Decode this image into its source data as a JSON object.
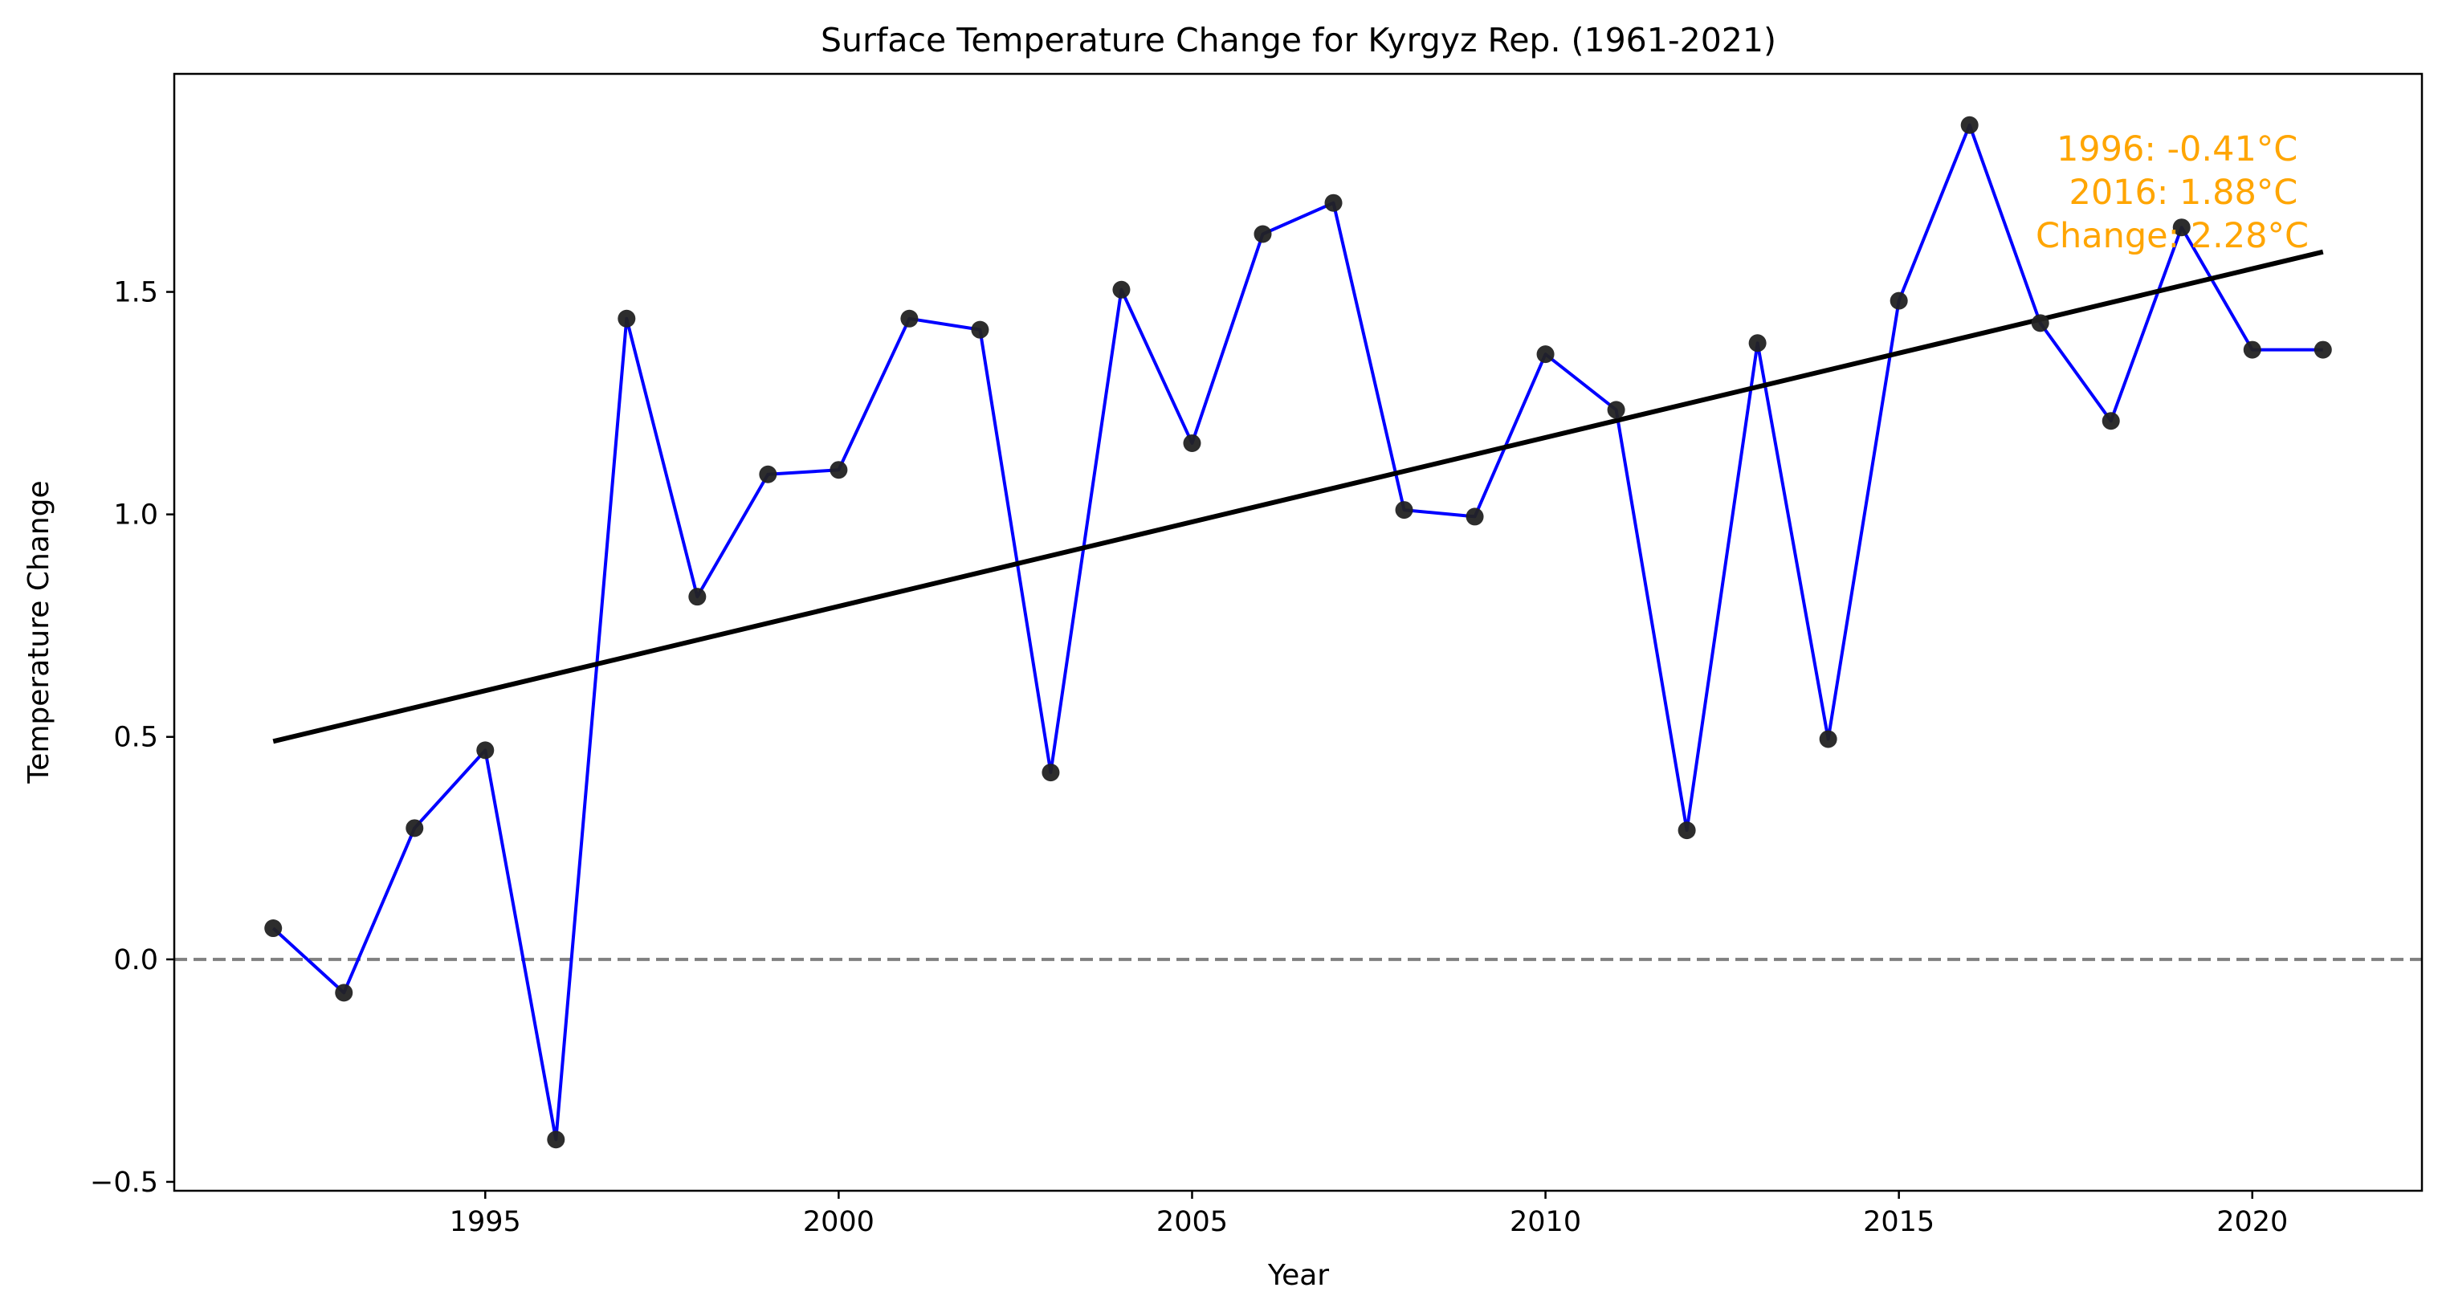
{
  "colors": {
    "series_line": "#0000ff",
    "point_fill": "#222222",
    "trend_line": "#000000",
    "zero_line": "#808080",
    "annotation": "#ffa500",
    "axes": "#000000",
    "background": "#ffffff"
  },
  "chart_data": {
    "type": "line",
    "title": "Surface Temperature Change for Kyrgyz Rep. (1961-2021)",
    "xlabel": "Year",
    "ylabel": "Temperature Change",
    "xlim": [
      1990.6,
      2022.4
    ],
    "ylim": [
      -0.52,
      1.99
    ],
    "grid": false,
    "legend": "none",
    "xticks": [
      1995,
      2000,
      2005,
      2010,
      2015,
      2020
    ],
    "xtick_labels": [
      "1995",
      "2000",
      "2005",
      "2010",
      "2015",
      "2020"
    ],
    "yticks": [
      -0.5,
      0.0,
      0.5,
      1.0,
      1.5
    ],
    "ytick_labels": [
      "−0.5",
      "0.0",
      "0.5",
      "1.0",
      "1.5"
    ],
    "series": [
      {
        "x": [
          1992,
          1993,
          1994,
          1995,
          1996,
          1997,
          1998,
          1999,
          2000,
          2001,
          2002,
          2003,
          2004,
          2005,
          2006,
          2007,
          2008,
          2009,
          2010,
          2011,
          2012,
          2013,
          2014,
          2015,
          2016,
          2017,
          2018,
          2019,
          2020,
          2021
        ],
        "values": [
          0.07,
          -0.075,
          0.295,
          0.47,
          -0.405,
          1.44,
          0.815,
          1.09,
          1.1,
          1.44,
          1.415,
          0.42,
          1.505,
          1.16,
          1.63,
          1.7,
          1.01,
          0.995,
          1.36,
          1.235,
          0.29,
          1.385,
          0.495,
          1.48,
          1.875,
          1.43,
          1.21,
          1.645,
          1.37,
          1.37
        ]
      }
    ],
    "trend_line": {
      "x": [
        1992,
        2021
      ],
      "y": [
        0.49,
        1.59
      ]
    },
    "reference_line": {
      "y": 0.0,
      "style": "dashed"
    },
    "annotation": {
      "lines": [
        "1996: -0.41°C",
        "2016: 1.88°C",
        "Change: 2.28°C"
      ],
      "placement": "top-right"
    }
  }
}
